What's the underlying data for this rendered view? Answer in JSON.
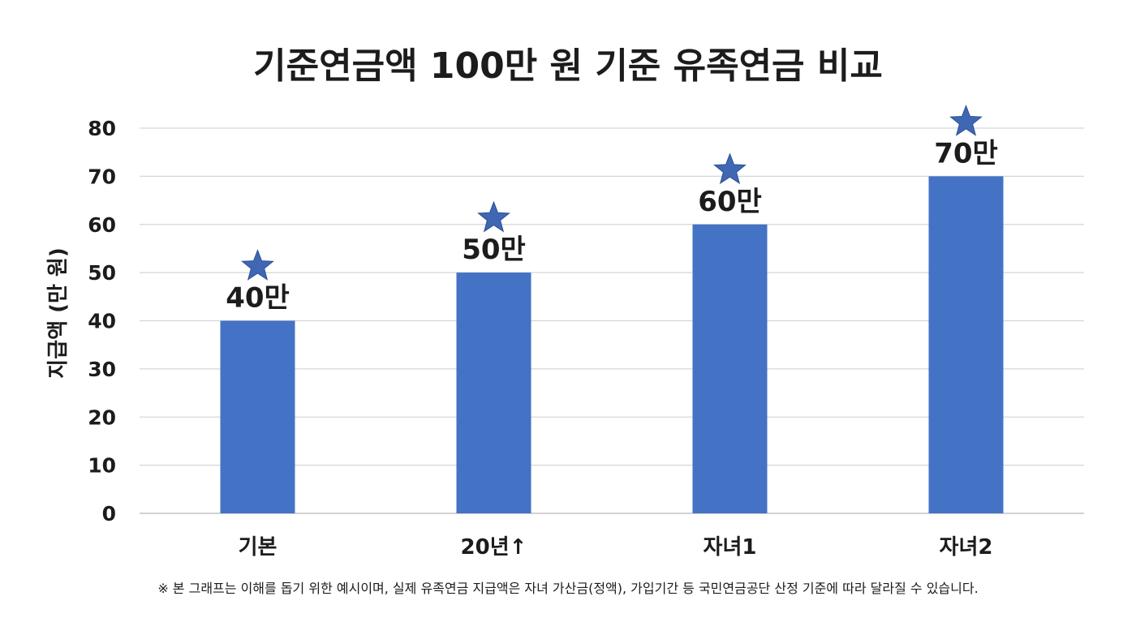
{
  "chart_data": {
    "type": "bar",
    "title": "기준연금액 100만 원 기준 유족연금 비교",
    "xlabel": "",
    "ylabel": "지급액 (만 원)",
    "categories": [
      "기본",
      "20년↑",
      "자녀1",
      "자녀2"
    ],
    "values": [
      40,
      50,
      60,
      70
    ],
    "data_labels": [
      "40만",
      "50만",
      "60만",
      "70만"
    ],
    "markers": "star",
    "ylim": [
      0,
      80
    ],
    "yticks": [
      0,
      10,
      20,
      30,
      40,
      50,
      60,
      70,
      80
    ],
    "grid": true,
    "bar_color": "#4472c4",
    "marker_color": "#3f67b4"
  },
  "footnote": "※ 본 그래프는 이해를 돕기 위한 예시이며, 실제 유족연금 지급액은 자녀 가산금(정액), 가입기간 등 국민연금공단 산정 기준에 따라 달라질 수 있습니다."
}
